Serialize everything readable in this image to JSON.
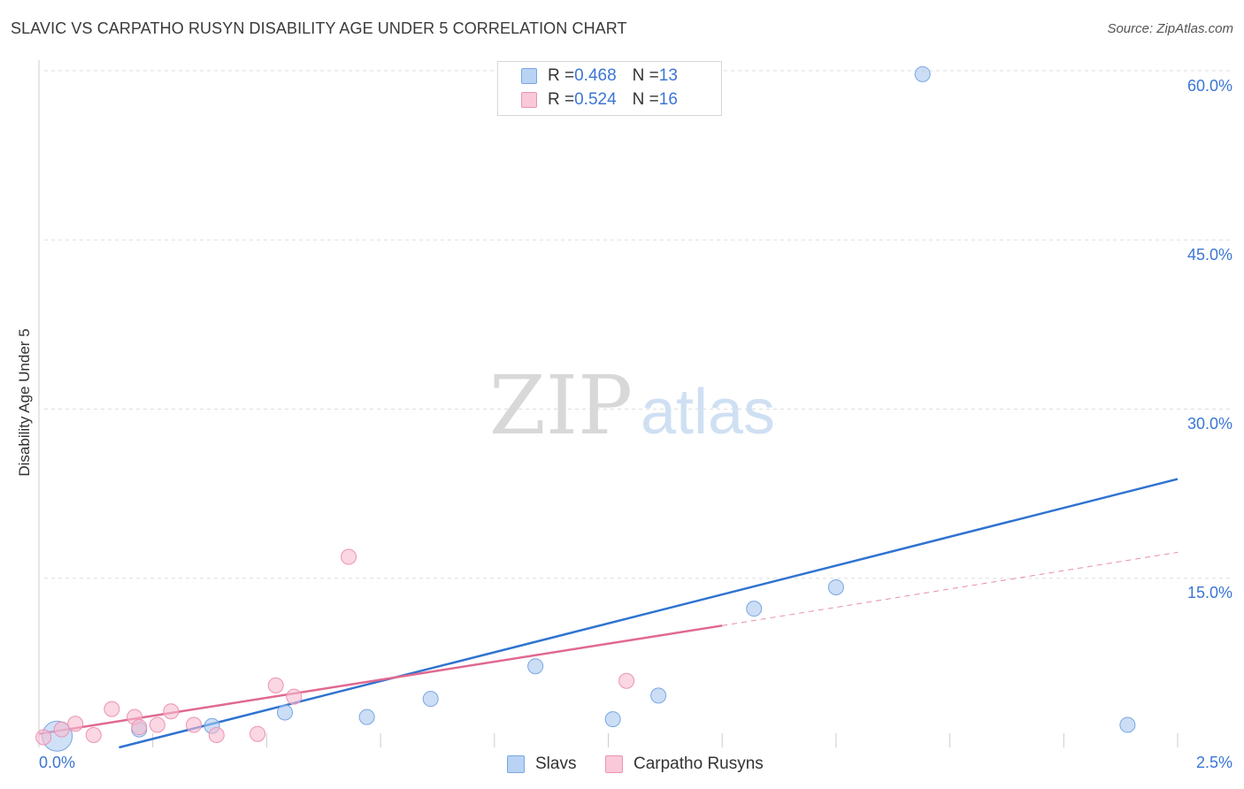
{
  "chart_data": {
    "type": "scatter",
    "title": "SLAVIC VS CARPATHO RUSYN DISABILITY AGE UNDER 5 CORRELATION CHART",
    "source": "Source: ZipAtlas.com",
    "xlabel": "",
    "ylabel": "Disability Age Under 5",
    "xlim": [
      0.0,
      2.5
    ],
    "ylim": [
      0.0,
      60.0
    ],
    "x_tick_labels": [
      "0.0%",
      "2.5%"
    ],
    "y_ticks": [
      15.0,
      30.0,
      45.0,
      60.0
    ],
    "y_tick_labels": [
      "15.0%",
      "30.0%",
      "45.0%",
      "60.0%"
    ],
    "grid": true,
    "watermark": "ZIPatlas",
    "legend": {
      "placement": "top-center",
      "entries": [
        {
          "r_label": "R = ",
          "r_value": "0.468",
          "n_label": "N = ",
          "n_value": "13"
        },
        {
          "r_label": "R = ",
          "r_value": "0.524",
          "n_label": "N = ",
          "n_value": "16"
        }
      ]
    },
    "series": [
      {
        "name": "Slavs",
        "color": "#a8c8f0",
        "stroke": "#7aa6e0",
        "line_color": "#2f73d0",
        "points": [
          {
            "x": 0.04,
            "y": 1.0,
            "big": true
          },
          {
            "x": 0.22,
            "y": 1.6
          },
          {
            "x": 0.38,
            "y": 1.9
          },
          {
            "x": 0.54,
            "y": 3.1
          },
          {
            "x": 0.72,
            "y": 2.7
          },
          {
            "x": 0.86,
            "y": 4.3
          },
          {
            "x": 1.09,
            "y": 7.2
          },
          {
            "x": 1.26,
            "y": 2.5
          },
          {
            "x": 1.36,
            "y": 4.6
          },
          {
            "x": 1.57,
            "y": 12.3
          },
          {
            "x": 1.75,
            "y": 14.2
          },
          {
            "x": 1.94,
            "y": 59.7
          },
          {
            "x": 2.39,
            "y": 2.0
          }
        ],
        "trend": {
          "x": [
            0.0,
            2.5
          ],
          "y": [
            -1.8,
            23.8
          ],
          "dashed": false
        }
      },
      {
        "name": "Carpatho Rusyns",
        "color": "#f7bcd0",
        "stroke": "#ec93b3",
        "line_color": "#e06890",
        "points": [
          {
            "x": 0.01,
            "y": 0.9
          },
          {
            "x": 0.05,
            "y": 1.6
          },
          {
            "x": 0.08,
            "y": 2.1
          },
          {
            "x": 0.12,
            "y": 1.1
          },
          {
            "x": 0.16,
            "y": 3.4
          },
          {
            "x": 0.21,
            "y": 2.7
          },
          {
            "x": 0.22,
            "y": 1.8
          },
          {
            "x": 0.26,
            "y": 2.0
          },
          {
            "x": 0.29,
            "y": 3.2
          },
          {
            "x": 0.34,
            "y": 2.0
          },
          {
            "x": 0.39,
            "y": 1.1
          },
          {
            "x": 0.48,
            "y": 1.2
          },
          {
            "x": 0.52,
            "y": 5.5
          },
          {
            "x": 0.56,
            "y": 4.5
          },
          {
            "x": 0.68,
            "y": 16.9
          },
          {
            "x": 1.29,
            "y": 5.9
          }
        ],
        "trend": {
          "x": [
            0.0,
            1.5
          ],
          "y": [
            1.2,
            10.8
          ],
          "dashed": false
        },
        "trend_extension": {
          "x": [
            1.5,
            2.5
          ],
          "y": [
            10.8,
            17.3
          ],
          "dashed": true
        }
      }
    ]
  }
}
